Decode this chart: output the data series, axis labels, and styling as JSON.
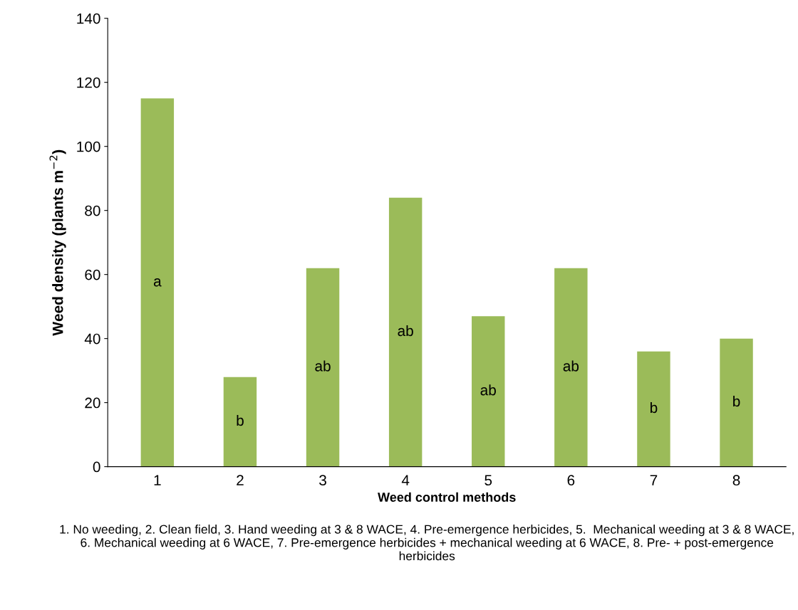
{
  "chart_data": {
    "type": "bar",
    "xlabel": "Weed control methods",
    "ylabel": "Weed density (plants m$^{−2}$)",
    "categories": [
      "1",
      "2",
      "3",
      "4",
      "5",
      "6",
      "7",
      "8"
    ],
    "values": [
      115,
      28,
      62,
      84,
      47,
      62,
      36,
      40
    ],
    "color": "#9bbb59",
    "ylim": [
      0,
      140
    ],
    "yticks": [
      0,
      20,
      40,
      60,
      80,
      100,
      120,
      140
    ],
    "grid": false,
    "annotations": [
      "a",
      "b",
      "ab",
      "ab",
      "ab",
      "ab",
      "b",
      "b",
      "1. No weeding, 2. Clean field, 3. Hand weeding at 3 & 8 WACE, 4. Pre-emergence herbicides, 5.  Mechanical weeding at 3 & 8 WACE, 6. Mechanical weeding at 6 WACE, 7. Pre-emergence herbicides + mechanical weeding at 6 WACE, 8. Pre- + post-emergence herbicides"
    ]
  }
}
